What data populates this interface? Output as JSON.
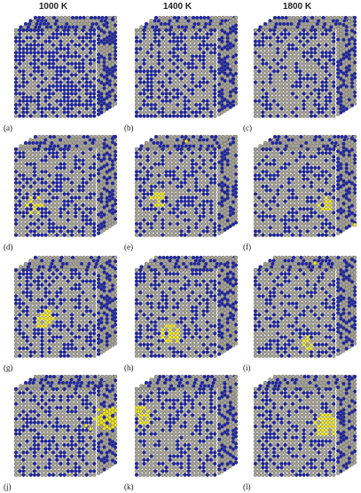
{
  "column_headers": [
    "1000 K",
    "1400 K",
    "1800 K"
  ],
  "panels": [
    {
      "label": "(a)"
    },
    {
      "label": "(b)"
    },
    {
      "label": "(c)"
    },
    {
      "label": "(d)"
    },
    {
      "label": "(e)"
    },
    {
      "label": "(f)"
    },
    {
      "label": "(g)"
    },
    {
      "label": "(h)"
    },
    {
      "label": "(i)"
    },
    {
      "label": "(j)"
    },
    {
      "label": "(k)"
    },
    {
      "label": "(l)"
    }
  ],
  "colors": {
    "matrix_atom": "#a8a498",
    "solute_atom": "#1c24a8",
    "cluster_atom": "#f2e818",
    "atom_outline": "#555555"
  }
}
